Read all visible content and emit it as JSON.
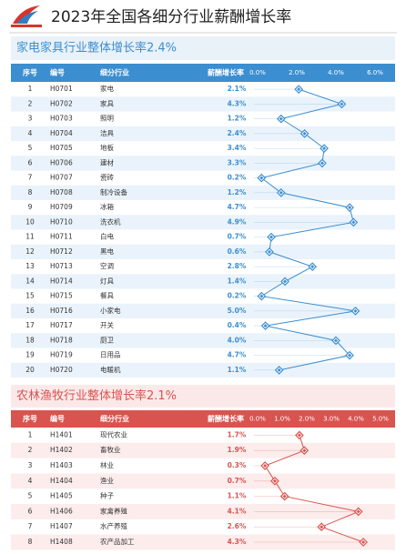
{
  "header": {
    "title": "2023年全国各细分行业薪酬增长率"
  },
  "chart_data": [
    {
      "type": "line",
      "title": "家电家具行业整体增长率2.4%",
      "columns": [
        "序号",
        "编号",
        "细分行业",
        "薪酬增长率"
      ],
      "index": [
        1,
        2,
        3,
        4,
        5,
        6,
        7,
        8,
        9,
        10,
        11,
        12,
        13,
        14,
        15,
        16,
        17,
        18,
        19,
        20
      ],
      "codes": [
        "H0701",
        "H0702",
        "H0703",
        "H0704",
        "H0705",
        "H0706",
        "H0707",
        "H0708",
        "H0709",
        "H0710",
        "H0711",
        "H0712",
        "H0713",
        "H0714",
        "H0715",
        "H0716",
        "H0717",
        "H0718",
        "H0719",
        "H0720"
      ],
      "categories": [
        "家电",
        "家具",
        "照明",
        "洁具",
        "地板",
        "建材",
        "瓷砖",
        "制冷设备",
        "冰箱",
        "洗衣机",
        "白电",
        "黑电",
        "空调",
        "灯具",
        "餐具",
        "小家电",
        "开关",
        "厨卫",
        "日用品",
        "电暖机"
      ],
      "values": [
        2.1,
        4.3,
        1.2,
        2.4,
        3.4,
        3.3,
        0.2,
        1.2,
        4.7,
        4.9,
        0.7,
        0.6,
        2.8,
        1.4,
        0.2,
        5.0,
        0.4,
        4.0,
        4.7,
        1.1
      ],
      "value_labels": [
        "2.1%",
        "4.3%",
        "1.2%",
        "2.4%",
        "3.4%",
        "3.3%",
        "0.2%",
        "1.2%",
        "4.7%",
        "4.9%",
        "0.7%",
        "0.6%",
        "2.8%",
        "1.4%",
        "0.2%",
        "5.0%",
        "0.4%",
        "4.0%",
        "4.7%",
        "1.1%"
      ],
      "xlim": [
        0,
        6
      ],
      "xticks": [
        {
          "value": 0,
          "label": "0.0%"
        },
        {
          "value": 2,
          "label": "2.0%"
        },
        {
          "value": 4,
          "label": "4.0%"
        },
        {
          "value": 6,
          "label": "6.0%"
        }
      ],
      "color": "#3b8ed0"
    },
    {
      "type": "line",
      "title": "农林渔牧行业整体增长率2.1%",
      "columns": [
        "序号",
        "编号",
        "细分行业",
        "薪酬增长率"
      ],
      "index": [
        1,
        2,
        3,
        4,
        5,
        6,
        7,
        8
      ],
      "codes": [
        "H1401",
        "H1402",
        "H1403",
        "H1404",
        "H1405",
        "H1406",
        "H1407",
        "H1408"
      ],
      "categories": [
        "现代农业",
        "畜牧业",
        "林业",
        "渔业",
        "种子",
        "家禽养殖",
        "水产养殖",
        "农产品加工"
      ],
      "values": [
        1.7,
        1.9,
        0.3,
        0.7,
        1.1,
        4.1,
        2.6,
        4.3
      ],
      "value_labels": [
        "1.7%",
        "1.9%",
        "0.3%",
        "0.7%",
        "1.1%",
        "4.1%",
        "2.6%",
        "4.3%"
      ],
      "xlim": [
        0,
        5
      ],
      "xticks": [
        {
          "value": 0,
          "label": "0.0%"
        },
        {
          "value": 1,
          "label": "1.0%"
        },
        {
          "value": 2,
          "label": "2.0%"
        },
        {
          "value": 3,
          "label": "3.0%"
        },
        {
          "value": 4,
          "label": "4.0%"
        },
        {
          "value": 5,
          "label": "5.0%"
        }
      ],
      "color": "#d9534f"
    }
  ]
}
